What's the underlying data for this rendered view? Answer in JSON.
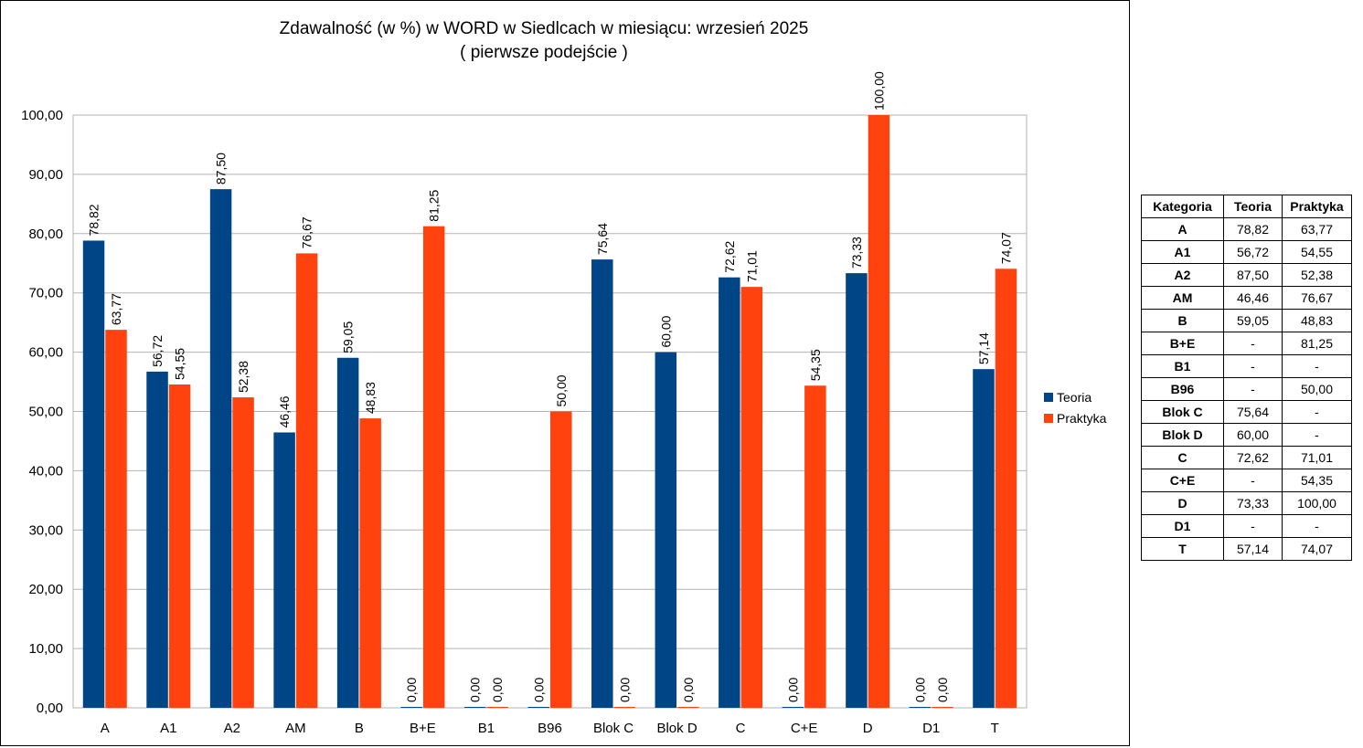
{
  "chart_data": {
    "type": "bar",
    "title": "Zdawalność (w %) w WORD w Siedlcach w miesiącu: wrzesień 2025",
    "subtitle": "( pierwsze podejście )",
    "xlabel": "",
    "ylabel": "",
    "ylim": [
      0,
      100
    ],
    "y_ticks": [
      "0,00",
      "10,00",
      "20,00",
      "30,00",
      "40,00",
      "50,00",
      "60,00",
      "70,00",
      "80,00",
      "90,00",
      "100,00"
    ],
    "grid": true,
    "legend_position": "right",
    "categories": [
      "A",
      "A1",
      "A2",
      "AM",
      "B",
      "B+E",
      "B1",
      "B96",
      "Blok C",
      "Blok D",
      "C",
      "C+E",
      "D",
      "D1",
      "T"
    ],
    "series": [
      {
        "name": "Teoria",
        "color": "#004586",
        "values": [
          78.82,
          56.72,
          87.5,
          46.46,
          59.05,
          0,
          0,
          0,
          75.64,
          60.0,
          72.62,
          0,
          73.33,
          0,
          57.14
        ],
        "labels": [
          "78,82",
          "56,72",
          "87,50",
          "46,46",
          "59,05",
          "0,00",
          "0,00",
          "0,00",
          "75,64",
          "60,00",
          "72,62",
          "0,00",
          "73,33",
          "0,00",
          "57,14"
        ]
      },
      {
        "name": "Praktyka",
        "color": "#ff420e",
        "values": [
          63.77,
          54.55,
          52.38,
          76.67,
          48.83,
          81.25,
          0,
          50.0,
          0,
          0,
          71.01,
          54.35,
          100.0,
          0,
          74.07
        ],
        "labels": [
          "63,77",
          "54,55",
          "52,38",
          "76,67",
          "48,83",
          "81,25",
          "0,00",
          "50,00",
          "0,00",
          "0,00",
          "71,01",
          "54,35",
          "100,00",
          "0,00",
          "74,07"
        ]
      }
    ]
  },
  "table": {
    "headers": [
      "Kategoria",
      "Teoria",
      "Praktyka"
    ],
    "rows": [
      [
        "A",
        "78,82",
        "63,77"
      ],
      [
        "A1",
        "56,72",
        "54,55"
      ],
      [
        "A2",
        "87,50",
        "52,38"
      ],
      [
        "AM",
        "46,46",
        "76,67"
      ],
      [
        "B",
        "59,05",
        "48,83"
      ],
      [
        "B+E",
        "-",
        "81,25"
      ],
      [
        "B1",
        "-",
        "-"
      ],
      [
        "B96",
        "-",
        "50,00"
      ],
      [
        "Blok C",
        "75,64",
        "-"
      ],
      [
        "Blok D",
        "60,00",
        "-"
      ],
      [
        "C",
        "72,62",
        "71,01"
      ],
      [
        "C+E",
        "-",
        "54,35"
      ],
      [
        "D",
        "73,33",
        "100,00"
      ],
      [
        "D1",
        "-",
        "-"
      ],
      [
        "T",
        "57,14",
        "74,07"
      ]
    ]
  }
}
